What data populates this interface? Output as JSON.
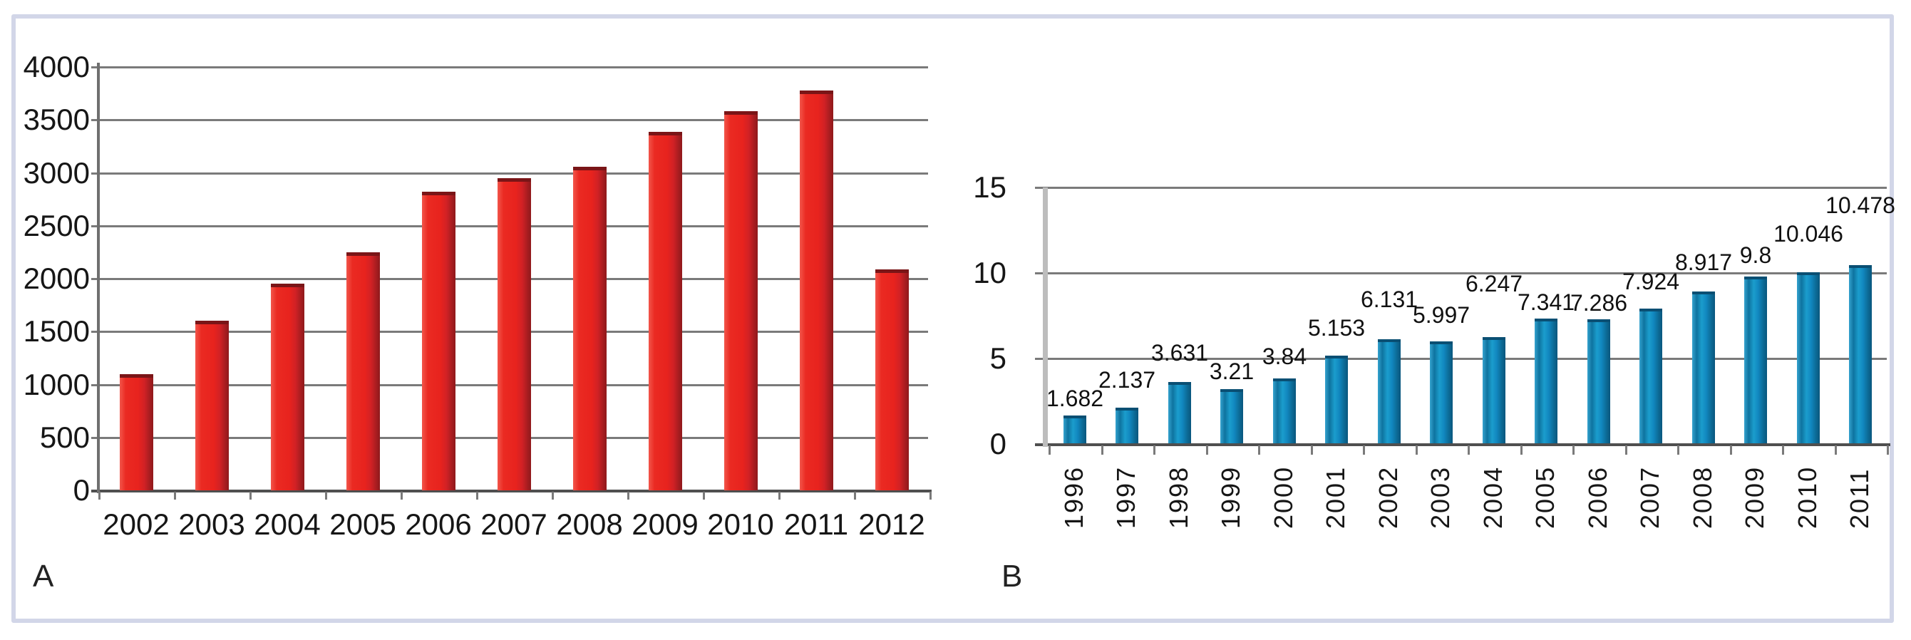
{
  "figure": {
    "panel_letters": {
      "a": "A",
      "b": "B"
    }
  },
  "colors": {
    "frame_border": "#d2d6e8",
    "gridline": "#7a7a7a",
    "axis_dark": "#4f4f4f",
    "axis_dark2": "#6f6f6f",
    "axis_light": "#bdbdbd",
    "bar_red": "#e8231e",
    "bar_red_dark": "#8f191c",
    "bar_blue": "#1187bf",
    "bar_blue_dark": "#0a567d",
    "text": "#161616"
  },
  "chart_data": [
    {
      "id": "a",
      "type": "bar",
      "panel_label": "A",
      "title": "",
      "xlabel": "",
      "ylabel": "",
      "categories": [
        "2002",
        "2003",
        "2004",
        "2005",
        "2006",
        "2007",
        "2008",
        "2009",
        "2010",
        "2011",
        "2012"
      ],
      "values": [
        1100,
        1600,
        1950,
        2250,
        2820,
        2950,
        3060,
        3390,
        3580,
        3780,
        2090
      ],
      "y_ticks": [
        0,
        500,
        1000,
        1500,
        2000,
        2500,
        3000,
        3500,
        4000
      ],
      "ylim": [
        0,
        4000
      ],
      "grid": true,
      "legend": "none",
      "bar_color": "#e8231e",
      "value_labels": []
    },
    {
      "id": "b",
      "type": "bar",
      "panel_label": "B",
      "title": "",
      "xlabel": "",
      "ylabel": "",
      "categories": [
        "1996",
        "1997",
        "1998",
        "1999",
        "2000",
        "2001",
        "2002",
        "2003",
        "2004",
        "2005",
        "2006",
        "2007",
        "2008",
        "2009",
        "2010",
        "2011"
      ],
      "values": [
        1.682,
        2.137,
        3.631,
        3.21,
        3.84,
        5.153,
        6.131,
        5.997,
        6.247,
        7.341,
        7.286,
        7.924,
        8.917,
        9.8,
        10.046,
        10.478
      ],
      "y_ticks": [
        0,
        5,
        10,
        15
      ],
      "ylim": [
        0,
        15
      ],
      "grid": true,
      "legend": "none",
      "bar_color": "#1187bf",
      "value_labels": [
        "1.682",
        "2.137",
        "3.631",
        "3.21",
        "3.84",
        "5.153",
        "6.131",
        "5.997",
        "6.247",
        "7.341",
        "7.286",
        "7.924",
        "8.917",
        "9.8",
        "10.046",
        "10.478"
      ]
    }
  ]
}
